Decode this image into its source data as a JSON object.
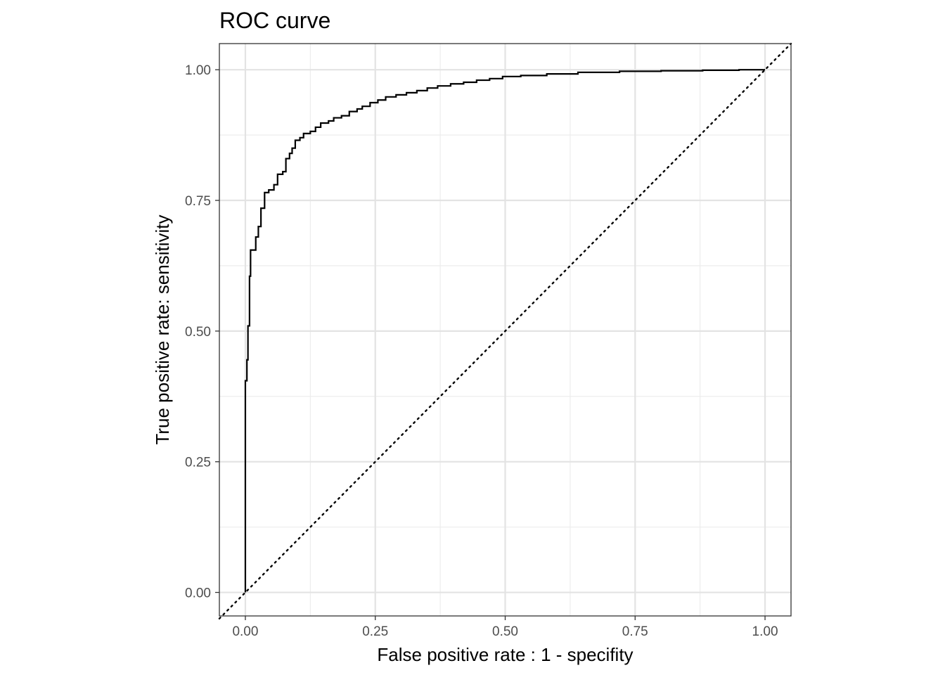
{
  "chart_data": {
    "type": "line",
    "title": "ROC curve",
    "xlabel": "False positive rate : 1 - specifity",
    "ylabel": "True positive rate: sensitivity",
    "xlim": [
      -0.05,
      1.05
    ],
    "ylim": [
      -0.045,
      1.05
    ],
    "grid": true,
    "legend": "none",
    "x_ticks": [
      {
        "value": 0.0,
        "label": "0.00"
      },
      {
        "value": 0.25,
        "label": "0.25"
      },
      {
        "value": 0.5,
        "label": "0.50"
      },
      {
        "value": 0.75,
        "label": "0.75"
      },
      {
        "value": 1.0,
        "label": "1.00"
      }
    ],
    "y_ticks": [
      {
        "value": 0.0,
        "label": "0.00"
      },
      {
        "value": 0.25,
        "label": "0.25"
      },
      {
        "value": 0.5,
        "label": "0.50"
      },
      {
        "value": 0.75,
        "label": "0.75"
      },
      {
        "value": 1.0,
        "label": "1.00"
      }
    ],
    "series": [
      {
        "line_color": "#000000",
        "style": "step",
        "points": [
          [
            0.0,
            0.0
          ],
          [
            0.0,
            0.405
          ],
          [
            0.003,
            0.405
          ],
          [
            0.003,
            0.445
          ],
          [
            0.005,
            0.445
          ],
          [
            0.005,
            0.51
          ],
          [
            0.008,
            0.51
          ],
          [
            0.008,
            0.605
          ],
          [
            0.01,
            0.605
          ],
          [
            0.01,
            0.655
          ],
          [
            0.02,
            0.655
          ],
          [
            0.02,
            0.68
          ],
          [
            0.025,
            0.68
          ],
          [
            0.025,
            0.7
          ],
          [
            0.03,
            0.7
          ],
          [
            0.03,
            0.735
          ],
          [
            0.037,
            0.735
          ],
          [
            0.037,
            0.765
          ],
          [
            0.045,
            0.765
          ],
          [
            0.045,
            0.77
          ],
          [
            0.055,
            0.77
          ],
          [
            0.055,
            0.78
          ],
          [
            0.062,
            0.78
          ],
          [
            0.062,
            0.8
          ],
          [
            0.072,
            0.8
          ],
          [
            0.072,
            0.805
          ],
          [
            0.078,
            0.805
          ],
          [
            0.078,
            0.83
          ],
          [
            0.085,
            0.83
          ],
          [
            0.085,
            0.84
          ],
          [
            0.09,
            0.84
          ],
          [
            0.09,
            0.85
          ],
          [
            0.096,
            0.85
          ],
          [
            0.096,
            0.865
          ],
          [
            0.105,
            0.865
          ],
          [
            0.105,
            0.87
          ],
          [
            0.112,
            0.87
          ],
          [
            0.112,
            0.878
          ],
          [
            0.125,
            0.878
          ],
          [
            0.125,
            0.882
          ],
          [
            0.135,
            0.882
          ],
          [
            0.135,
            0.89
          ],
          [
            0.145,
            0.89
          ],
          [
            0.145,
            0.898
          ],
          [
            0.16,
            0.898
          ],
          [
            0.16,
            0.902
          ],
          [
            0.17,
            0.902
          ],
          [
            0.17,
            0.908
          ],
          [
            0.185,
            0.908
          ],
          [
            0.185,
            0.912
          ],
          [
            0.2,
            0.912
          ],
          [
            0.2,
            0.92
          ],
          [
            0.215,
            0.92
          ],
          [
            0.215,
            0.925
          ],
          [
            0.225,
            0.925
          ],
          [
            0.225,
            0.93
          ],
          [
            0.24,
            0.93
          ],
          [
            0.24,
            0.937
          ],
          [
            0.255,
            0.937
          ],
          [
            0.255,
            0.942
          ],
          [
            0.27,
            0.942
          ],
          [
            0.27,
            0.948
          ],
          [
            0.29,
            0.948
          ],
          [
            0.29,
            0.952
          ],
          [
            0.31,
            0.952
          ],
          [
            0.31,
            0.956
          ],
          [
            0.33,
            0.956
          ],
          [
            0.33,
            0.96
          ],
          [
            0.35,
            0.96
          ],
          [
            0.35,
            0.965
          ],
          [
            0.37,
            0.965
          ],
          [
            0.37,
            0.969
          ],
          [
            0.395,
            0.969
          ],
          [
            0.395,
            0.973
          ],
          [
            0.42,
            0.973
          ],
          [
            0.42,
            0.976
          ],
          [
            0.445,
            0.976
          ],
          [
            0.445,
            0.98
          ],
          [
            0.47,
            0.98
          ],
          [
            0.47,
            0.983
          ],
          [
            0.495,
            0.983
          ],
          [
            0.495,
            0.987
          ],
          [
            0.53,
            0.987
          ],
          [
            0.53,
            0.989
          ],
          [
            0.58,
            0.989
          ],
          [
            0.58,
            0.992
          ],
          [
            0.64,
            0.992
          ],
          [
            0.64,
            0.995
          ],
          [
            0.72,
            0.995
          ],
          [
            0.72,
            0.997
          ],
          [
            0.8,
            0.997
          ],
          [
            0.8,
            0.998
          ],
          [
            0.88,
            0.998
          ],
          [
            0.88,
            0.999
          ],
          [
            0.95,
            0.999
          ],
          [
            0.95,
            1.0
          ],
          [
            1.0,
            1.0
          ]
        ]
      },
      {
        "line_color": "#000000",
        "style": "dotted",
        "points": [
          [
            -0.05,
            -0.05
          ],
          [
            1.05,
            1.05
          ]
        ]
      }
    ]
  }
}
